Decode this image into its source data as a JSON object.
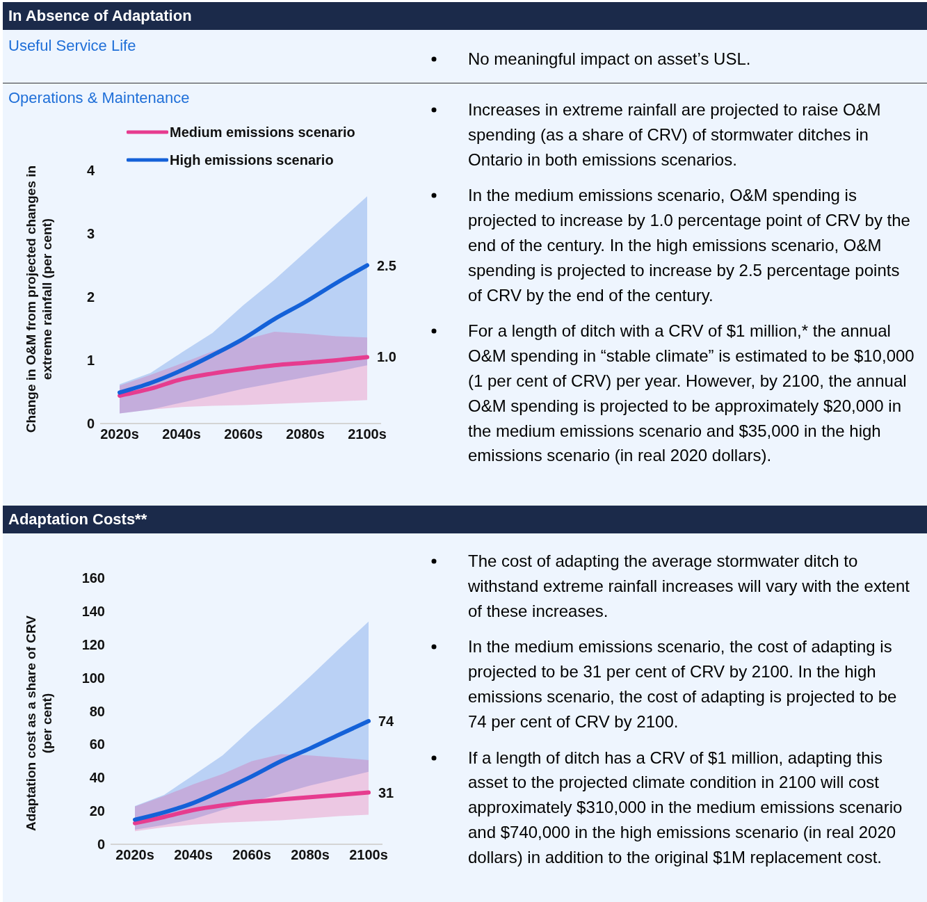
{
  "chart_data": [
    {
      "type": "other",
      "title": "In Absence of Adaptation",
      "subtitle": "Useful Service Life",
      "annotations": [
        "No meaningful impact on asset’s USL."
      ]
    },
    {
      "type": "line",
      "title": "Operations & Maintenance",
      "ylabel": "Change in O&M from projected changes in extreme rainfall (per cent)",
      "categories": [
        "2020s",
        null,
        "2040s",
        null,
        "2060s",
        null,
        "2080s",
        null,
        "2100s"
      ],
      "series": [
        {
          "name": "Medium emissions scenario",
          "color": "#e63c8f",
          "values": [
            0.44,
            0.55,
            0.7,
            0.79,
            0.86,
            0.92,
            0.96,
            1.0,
            1.05
          ],
          "lower": [
            0.16,
            0.22,
            0.26,
            0.28,
            0.29,
            0.31,
            0.33,
            0.35,
            0.37
          ],
          "upper": [
            0.6,
            0.77,
            0.95,
            1.14,
            1.32,
            1.45,
            1.42,
            1.38,
            1.36
          ],
          "value_labels": [
            null,
            null,
            null,
            null,
            null,
            null,
            null,
            null,
            "1.0"
          ]
        },
        {
          "name": "High emissions scenario",
          "color": "#1461d8",
          "values": [
            0.49,
            0.64,
            0.84,
            1.08,
            1.34,
            1.65,
            1.92,
            2.22,
            2.5
          ],
          "lower": [
            0.16,
            0.22,
            0.33,
            0.44,
            0.55,
            0.64,
            0.73,
            0.82,
            0.92
          ],
          "upper": [
            0.62,
            0.8,
            1.12,
            1.43,
            1.87,
            2.27,
            2.71,
            3.15,
            3.59
          ],
          "value_labels": [
            null,
            null,
            null,
            null,
            null,
            null,
            null,
            null,
            "2.5"
          ]
        }
      ],
      "ylim": [
        0,
        4
      ],
      "yticks": [
        0,
        1,
        2,
        3,
        4
      ],
      "legend": "top left",
      "annotations": [
        "Increases in extreme rainfall are projected to raise O&M spending (as a share of CRV) of stormwater ditches in Ontario in both emissions scenarios.",
        "In the medium emissions scenario, O&M spending is projected to increase by 1.0 percentage point of CRV by the end of the century. In the high emissions scenario, O&M spending is projected to increase by 2.5 percentage points of CRV by the end of the century.",
        "For a length of ditch with a CRV of $1 million,* the annual O&M spending in “stable climate” is estimated to be $10,000 (1 per cent of CRV) per year. However, by 2100, the annual O&M spending is projected to be approximately $20,000 in the medium emissions scenario and $35,000 in the high emissions scenario (in real 2020 dollars)."
      ]
    },
    {
      "type": "line",
      "title": "Adaptation Costs**",
      "ylabel": "Adaptation cost as a share of CRV (per cent)",
      "categories": [
        "2020s",
        null,
        "2040s",
        null,
        "2060s",
        null,
        "2080s",
        null,
        "2100s"
      ],
      "series": [
        {
          "color": "#e63c8f",
          "values": [
            12.7,
            16.4,
            20.6,
            23.4,
            25.5,
            26.9,
            28.3,
            29.7,
            31.1
          ],
          "lower": [
            7.8,
            10.2,
            11.8,
            13,
            13.7,
            14.4,
            15.7,
            16.9,
            17.8
          ],
          "upper": [
            22.7,
            29,
            36,
            42.2,
            49.9,
            54.1,
            53.4,
            52,
            50.6
          ],
          "value_labels": [
            null,
            null,
            null,
            null,
            null,
            null,
            null,
            null,
            "31"
          ]
        },
        {
          "color": "#1461d8",
          "values": [
            14.8,
            19.2,
            24.8,
            32.5,
            40.8,
            49.9,
            57.6,
            65.9,
            74
          ],
          "lower": [
            8.8,
            11.6,
            15.1,
            20.6,
            25.5,
            30.4,
            35.3,
            39.4,
            43.6
          ],
          "upper": [
            23,
            29.7,
            41.5,
            53.4,
            69.4,
            84.7,
            100.8,
            117.5,
            133.8
          ],
          "value_labels": [
            null,
            null,
            null,
            null,
            null,
            null,
            null,
            null,
            "74"
          ]
        }
      ],
      "ylim": [
        0,
        160
      ],
      "yticks": [
        0,
        20,
        40,
        60,
        80,
        100,
        120,
        140,
        160
      ],
      "annotations": [
        "The cost of adapting the average stormwater ditch to withstand extreme rainfall increases will vary with the extent of these increases.",
        "In the medium emissions scenario, the cost of adapting is projected to be 31 per cent of CRV by 2100. In the high emissions scenario, the cost of adapting is projected to be 74 per cent of CRV by 2100.",
        "If a length of ditch has a CRV of $1 million, adapting this asset to the projected climate condition in 2100 will cost approximately $310,000 in the medium emissions scenario and $740,000 in the high emissions scenario (in real 2020 dollars) in addition to the original $1M replacement cost."
      ]
    }
  ]
}
